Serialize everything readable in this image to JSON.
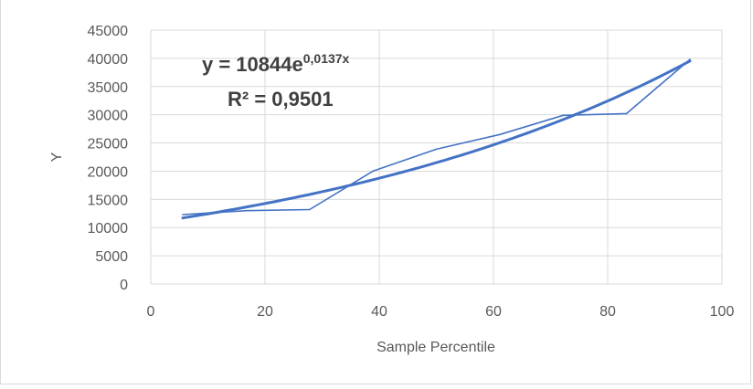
{
  "chart_data": {
    "type": "scatter",
    "title": "",
    "xlabel": "Sample Percentile",
    "ylabel": "Y",
    "xlim": [
      0,
      100
    ],
    "ylim": [
      0,
      45000
    ],
    "x_ticks": [
      "0",
      "20",
      "40",
      "60",
      "80",
      "100"
    ],
    "y_ticks": [
      "0",
      "5000",
      "10000",
      "15000",
      "20000",
      "25000",
      "30000",
      "35000",
      "40000",
      "45000"
    ],
    "grid": true,
    "series": [
      {
        "points": [
          {
            "x": 5.6,
            "y": 12300
          },
          {
            "x": 16.7,
            "y": 13000
          },
          {
            "x": 27.8,
            "y": 13200
          },
          {
            "x": 38.9,
            "y": 20000
          },
          {
            "x": 50.0,
            "y": 23900
          },
          {
            "x": 61.1,
            "y": 26500
          },
          {
            "x": 72.2,
            "y": 29900
          },
          {
            "x": 83.3,
            "y": 30200
          },
          {
            "x": 94.4,
            "y": 39800
          }
        ]
      }
    ],
    "trendline": {
      "type": "exponential",
      "a": 10844,
      "b": 0.0137,
      "x_range": [
        5.6,
        94.4
      ],
      "equation_base": "y = 10844e",
      "equation_exponent": "0,0137x",
      "r_squared": "R² = 0,9501"
    },
    "colors": {
      "series": "#4472c4",
      "grid": "#d9d9d9",
      "text": "#595959",
      "annotation": "#404040"
    }
  }
}
